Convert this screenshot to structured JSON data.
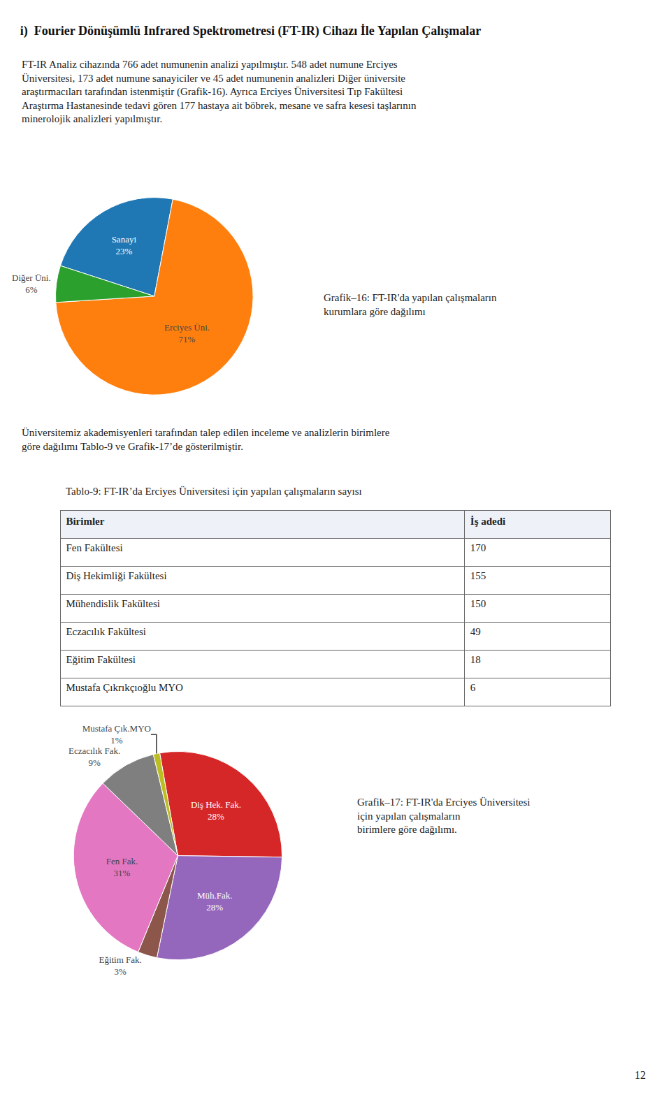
{
  "title": "i)  Fourier Dönüşümlü Infrared Spektrometresi (FT-IR) Cihazı İle Yapılan Çalışmalar",
  "annotations": [
    "FT-IR Analiz cihazında 766 adet numunenin analizi yapılmıştır. 548 adet numune Erciyes\nÜniversitesi, 173 adet numune sanayiciler ve 45 adet numunenin analizleri Diğer üniversite\naraştırmacıları tarafından istenmiştir (Grafik-16). Ayrıca Erciyes Üniversitesi Tıp Fakültesi\nAraştırma Hastanesinde tedavi gören 177 hastaya ait böbrek, mesane ve safra kesesi taşlarının\nminerolojik analizleri yapılmıştır.",
    "Üniversitemiz akademisyenleri tarafından talep edilen inceleme ve analizlerin birimlere\ngöre dağılımı Tablo-9 ve Grafik-17’de gösterilmiştir."
  ],
  "page_number": "12",
  "chart_data": [
    {
      "type": "pie",
      "title": "Grafik–16: FT-IR'da yapılan çalışmaların\nkurumlara göre dağılımı",
      "categories": [
        "Sanayi",
        "Erciyes Üni.",
        "Diğer Üni."
      ],
      "values": [
        23,
        71,
        6
      ],
      "value_labels": [
        "23%",
        "71%",
        "6%"
      ],
      "data_labels": true
    },
    {
      "type": "table",
      "title": "Tablo-9: FT-IR’da Erciyes Üniversitesi için yapılan çalışmaların sayısı",
      "headers": [
        "Birimler",
        "İş adedi"
      ],
      "rows": [
        [
          "Fen Fakültesi",
          170
        ],
        [
          "Diş Hekimliği Fakültesi",
          155
        ],
        [
          "Mühendislik Fakültesi",
          150
        ],
        [
          "Eczacılık Fakültesi",
          49
        ],
        [
          "Eğitim Fakültesi",
          18
        ],
        [
          "Mustafa Çıkrıkçıoğlu MYO",
          6
        ]
      ]
    },
    {
      "type": "pie",
      "title": "Grafik–17: FT-IR'da Erciyes Üniversitesi\niçin yapılan çalışmaların\nbirimlere göre dağılımı.",
      "categories": [
        "Diş Hek. Fak.",
        "Müh.Fak.",
        "Eğitim Fak.",
        "Fen Fak.",
        "Eczacılık Fak.",
        "Mustafa Çık.MYO"
      ],
      "values": [
        28,
        28,
        3,
        31,
        9,
        1
      ],
      "value_labels": [
        "28%",
        "28%",
        "3%",
        "31%",
        "9%",
        "1%"
      ],
      "data_labels": true
    }
  ]
}
